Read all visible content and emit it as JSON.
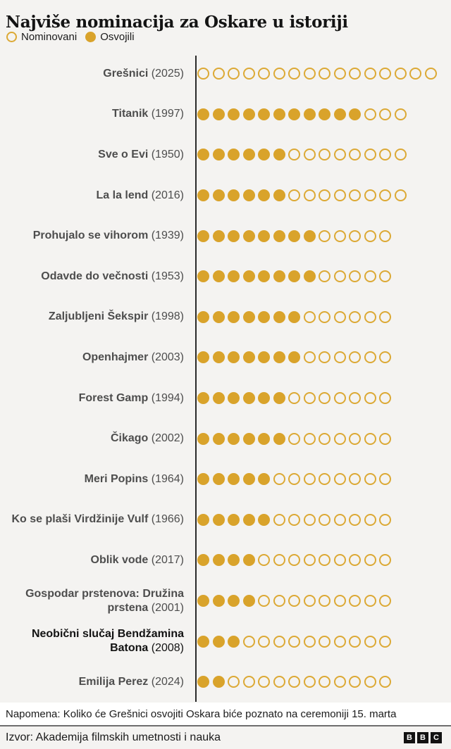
{
  "header": {
    "title": "Najviše nominacija za Oskare u istoriji"
  },
  "legend": {
    "nominated_label": "Nominovani",
    "won_label": "Osvojili"
  },
  "colors": {
    "gold_fill": "#D9A32B",
    "gold_ring": "#DCA935",
    "label_gray": "#4d4d4d",
    "highlight_black": "#121212",
    "background": "#f4f3f1",
    "axis_line": "#2a2a2a"
  },
  "chart_data": {
    "type": "bar",
    "variant": "dot-pictogram (1 circle = 1 nomination; filled circle = won)",
    "title": "Najviše nominacija za Oskare u istoriji",
    "legend": [
      "Nominovani",
      "Osvojili"
    ],
    "legend_position": "top-left",
    "films": [
      {
        "name": "Grešnici",
        "year": "2025",
        "nominations": 16,
        "wins": 0,
        "highlight": false
      },
      {
        "name": "Titanik",
        "year": "1997",
        "nominations": 14,
        "wins": 11,
        "highlight": false
      },
      {
        "name": "Sve o Evi",
        "year": "1950",
        "nominations": 14,
        "wins": 6,
        "highlight": false
      },
      {
        "name": "La la lend",
        "year": "2016",
        "nominations": 14,
        "wins": 6,
        "highlight": false
      },
      {
        "name": "Prohujalo se vihorom",
        "year": "1939",
        "nominations": 13,
        "wins": 8,
        "highlight": false
      },
      {
        "name": "Odavde do večnosti",
        "year": "1953",
        "nominations": 13,
        "wins": 8,
        "highlight": false
      },
      {
        "name": "Zaljubljeni Šekspir",
        "year": "1998",
        "nominations": 13,
        "wins": 7,
        "highlight": false
      },
      {
        "name": "Openhajmer",
        "year": "2003",
        "nominations": 13,
        "wins": 7,
        "highlight": false
      },
      {
        "name": "Forest Gamp",
        "year": "1994",
        "nominations": 13,
        "wins": 6,
        "highlight": false
      },
      {
        "name": "Čikago",
        "year": "2002",
        "nominations": 13,
        "wins": 6,
        "highlight": false
      },
      {
        "name": "Meri Popins",
        "year": "1964",
        "nominations": 13,
        "wins": 5,
        "highlight": false
      },
      {
        "name": "Ko se plaši Virdžinije Vulf",
        "year": "1966",
        "nominations": 13,
        "wins": 5,
        "highlight": false
      },
      {
        "name": "Oblik vode",
        "year": "2017",
        "nominations": 13,
        "wins": 4,
        "highlight": false
      },
      {
        "name": "Gospodar prstenova: Družina prstena",
        "year": "2001",
        "nominations": 13,
        "wins": 4,
        "highlight": false
      },
      {
        "name": "Neobični slučaj Bendžamina Batona",
        "year": "2008",
        "nominations": 13,
        "wins": 3,
        "highlight": true
      },
      {
        "name": "Emilija Perez",
        "year": "2024",
        "nominations": 13,
        "wins": 2,
        "highlight": false
      }
    ]
  },
  "footer": {
    "note": "Napomena: Koliko će Grešnici osvojiti Oskara biće poznato na ceremoniji 15. marta",
    "source": "Izvor: Akademija filmskih umetnosti i nauka",
    "logo_letters": [
      "B",
      "B",
      "C"
    ]
  }
}
